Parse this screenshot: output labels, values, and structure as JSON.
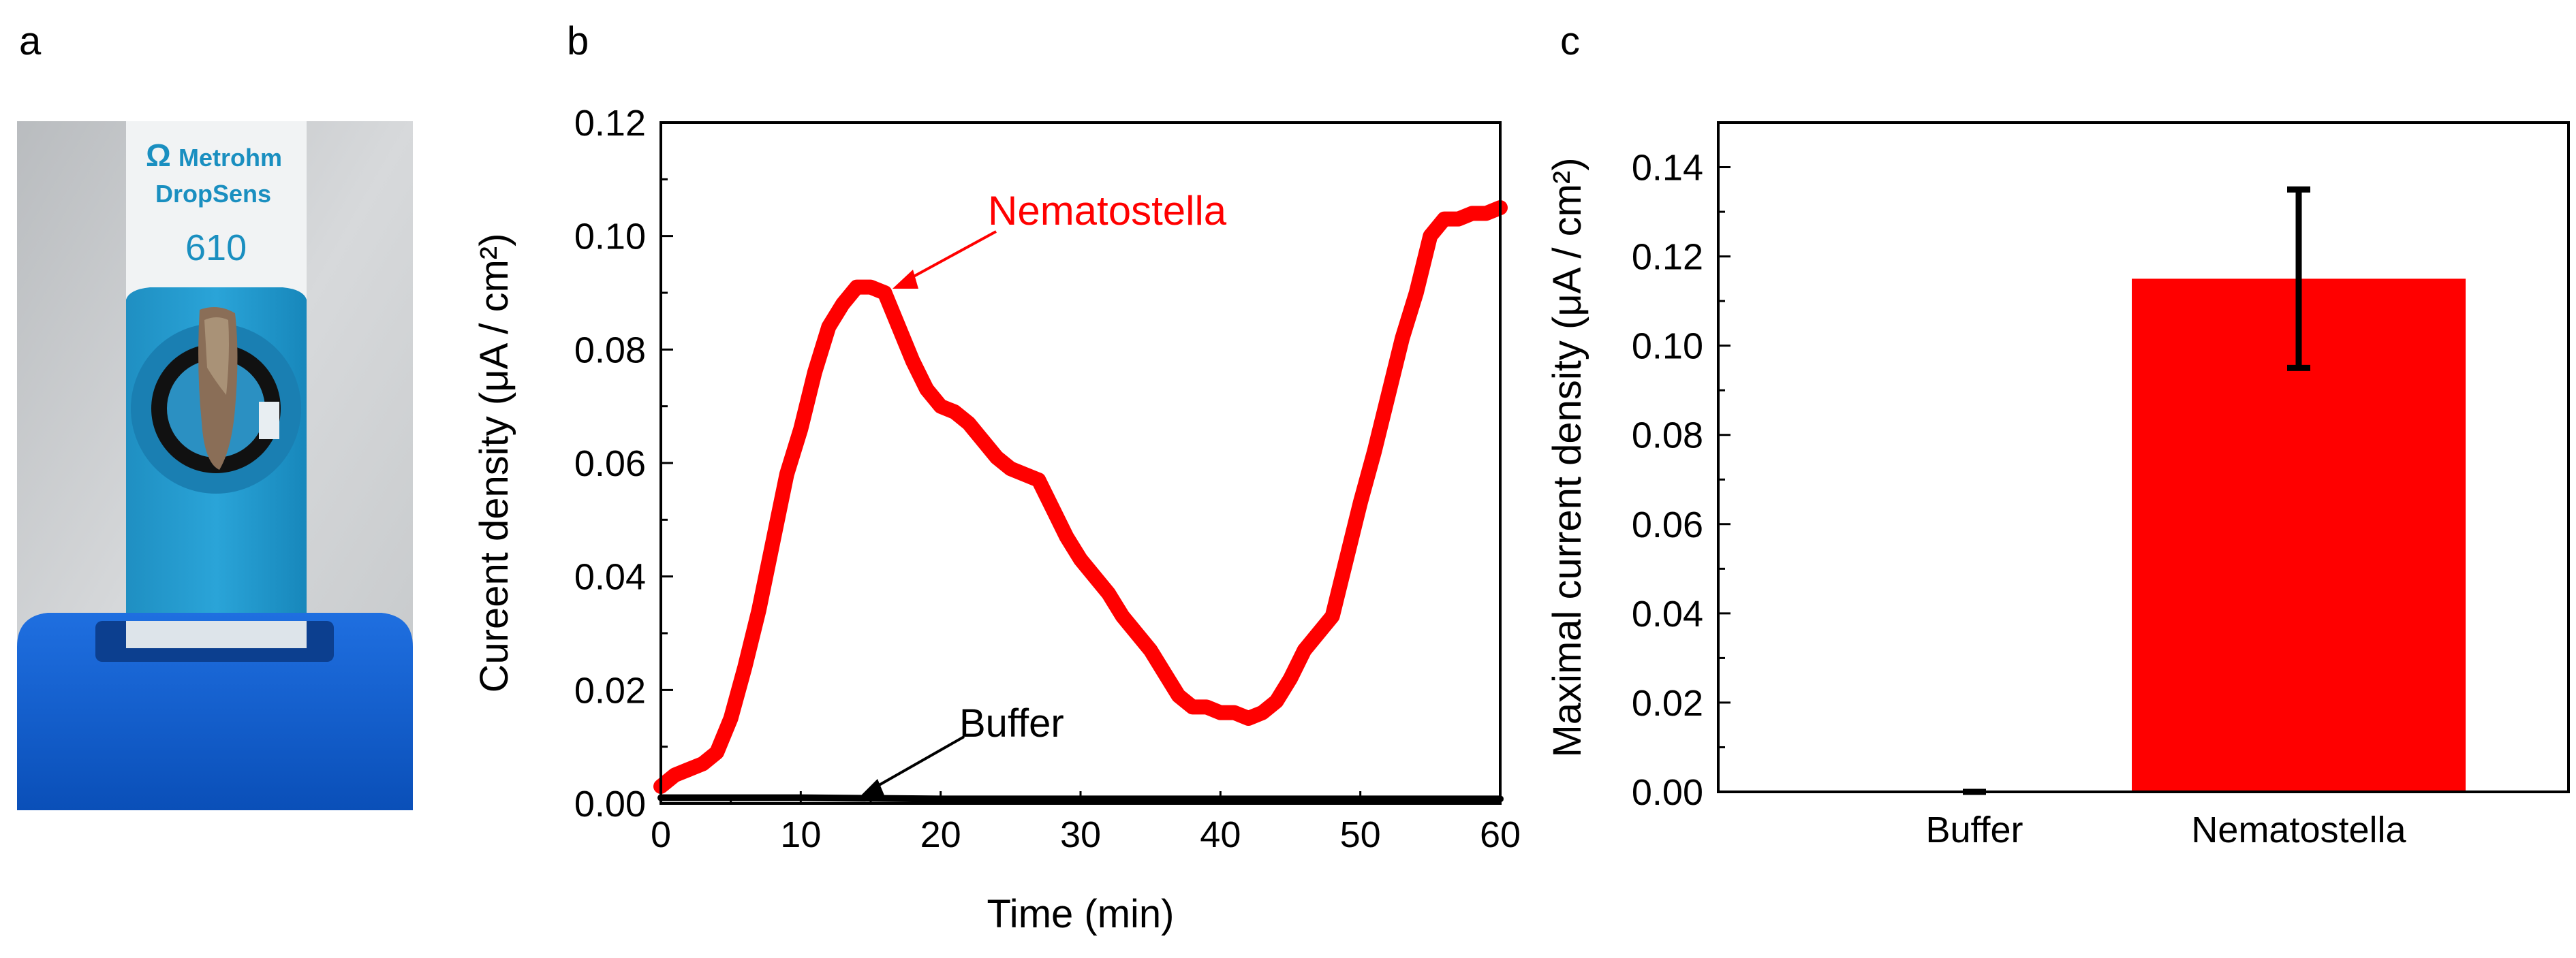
{
  "panel_labels": {
    "a": "a",
    "b": "b",
    "c": "c"
  },
  "photo": {
    "brand_symbol": "Ω",
    "brand_line1": "Metrohm",
    "brand_line2": "DropSens",
    "model_number": "610"
  },
  "chart_data": [
    {
      "type": "line",
      "title": "",
      "xlabel": "Time (min)",
      "ylabel": "Cureent density (μA / cm²)",
      "xlim": [
        0,
        60
      ],
      "ylim": [
        0,
        0.12
      ],
      "xticks": [
        0,
        10,
        20,
        30,
        40,
        50,
        60
      ],
      "xtick_labels": [
        "0",
        "10",
        "20",
        "30",
        "40",
        "50",
        "60"
      ],
      "yticks": [
        0,
        0.02,
        0.04,
        0.06,
        0.08,
        0.1,
        0.12
      ],
      "ytick_labels": [
        "0.00",
        "0.02",
        "0.04",
        "0.06",
        "0.08",
        "0.10",
        "0.12"
      ],
      "series": [
        {
          "name": "Nematostella",
          "color": "#ff0000",
          "x": [
            0,
            1,
            2,
            3,
            4,
            5,
            6,
            7,
            8,
            9,
            10,
            11,
            12,
            13,
            14,
            15,
            16,
            17,
            18,
            19,
            20,
            21,
            22,
            23,
            24,
            25,
            26,
            27,
            28,
            29,
            30,
            31,
            32,
            33,
            34,
            35,
            36,
            37,
            38,
            39,
            40,
            41,
            42,
            43,
            44,
            45,
            46,
            47,
            48,
            49,
            50,
            51,
            52,
            53,
            54,
            55,
            56,
            57,
            58,
            59,
            60
          ],
          "y": [
            0.003,
            0.005,
            0.006,
            0.007,
            0.009,
            0.015,
            0.024,
            0.034,
            0.046,
            0.058,
            0.066,
            0.076,
            0.084,
            0.088,
            0.091,
            0.091,
            0.09,
            0.084,
            0.078,
            0.073,
            0.07,
            0.069,
            0.067,
            0.064,
            0.061,
            0.059,
            0.058,
            0.057,
            0.052,
            0.047,
            0.043,
            0.04,
            0.037,
            0.033,
            0.03,
            0.027,
            0.023,
            0.019,
            0.017,
            0.017,
            0.016,
            0.016,
            0.015,
            0.016,
            0.018,
            0.022,
            0.027,
            0.03,
            0.033,
            0.043,
            0.053,
            0.062,
            0.072,
            0.082,
            0.09,
            0.1,
            0.103,
            0.103,
            0.104,
            0.104,
            0.105
          ]
        },
        {
          "name": "Buffer",
          "color": "#000000",
          "x": [
            0,
            10,
            20,
            30,
            40,
            50,
            60
          ],
          "y": [
            0.001,
            0.001,
            0.0008,
            0.0008,
            0.0008,
            0.0008,
            0.0008
          ]
        }
      ],
      "annotations": [
        {
          "text": "Nematostella",
          "x": 16,
          "y": 0.091,
          "color": "#ff0000"
        },
        {
          "text": "Buffer",
          "x": 14,
          "y": 0.001,
          "color": "#000000"
        }
      ]
    },
    {
      "type": "bar",
      "title": "",
      "xlabel": "",
      "ylabel": "Maximal current density (μA / cm²)",
      "ylim": [
        0,
        0.15
      ],
      "yticks": [
        0,
        0.02,
        0.04,
        0.06,
        0.08,
        0.1,
        0.12,
        0.14
      ],
      "ytick_labels": [
        "0.00",
        "0.02",
        "0.04",
        "0.06",
        "0.08",
        "0.10",
        "0.12",
        "0.14"
      ],
      "categories": [
        "Buffer",
        "Nematostella"
      ],
      "values": [
        0.0,
        0.115
      ],
      "errors": [
        0.0,
        0.02
      ],
      "bar_colors": [
        "#ff0000",
        "#ff0000"
      ],
      "error_color": "#000000"
    }
  ]
}
